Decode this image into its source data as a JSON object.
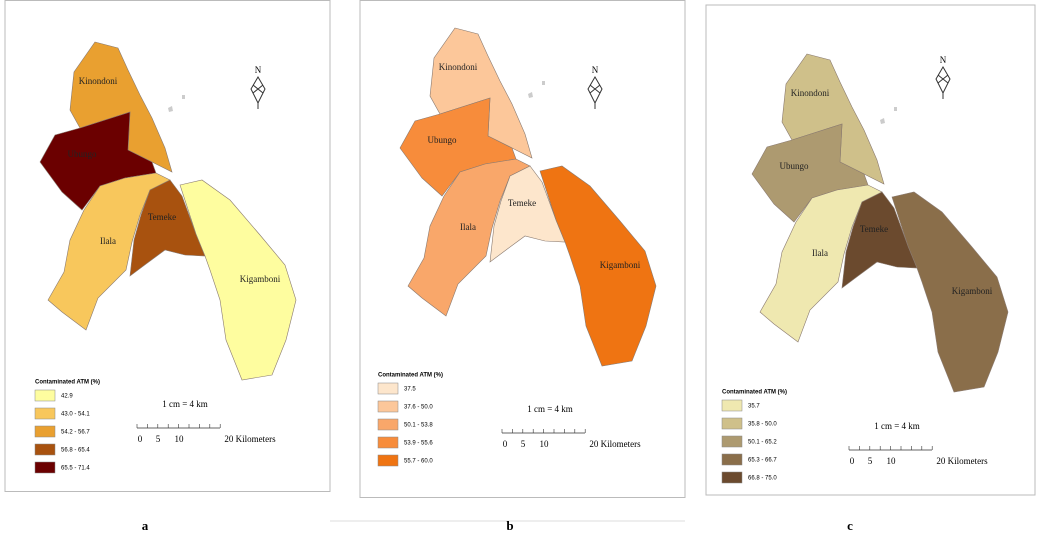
{
  "panels": [
    {
      "caption": "a",
      "legend_title": "Contaminated ATM (%)",
      "legend": [
        {
          "label": "42.9",
          "color": "#fefd9f"
        },
        {
          "label": "43.0 - 54.1",
          "color": "#f8c75c"
        },
        {
          "label": "54.2 - 56.7",
          "color": "#e9a030"
        },
        {
          "label": "56.8 - 65.4",
          "color": "#a8520f"
        },
        {
          "label": "65.5 - 71.4",
          "color": "#6b0000"
        }
      ],
      "districts": [
        {
          "name": "Kinondoni",
          "color": "#e9a030"
        },
        {
          "name": "Ubungo",
          "color": "#6b0000"
        },
        {
          "name": "Ilala",
          "color": "#f8c75c"
        },
        {
          "name": "Temeke",
          "color": "#a8520f"
        },
        {
          "name": "Kigamboni",
          "color": "#fefd9f"
        }
      ],
      "scale": "1 cm = 4 km",
      "scale_ticks": [
        "0",
        "5",
        "10",
        "20 Kilometers"
      ],
      "north": "N"
    },
    {
      "caption": "b",
      "legend_title": "Contaminated ATM (%)",
      "legend": [
        {
          "label": "37.5",
          "color": "#fde6cc"
        },
        {
          "label": "37.6 - 50.0",
          "color": "#fcc79a"
        },
        {
          "label": "50.1 - 53.8",
          "color": "#f9a76a"
        },
        {
          "label": "53.9 - 55.6",
          "color": "#f78c3b"
        },
        {
          "label": "55.7 - 60.0",
          "color": "#ef7412"
        }
      ],
      "districts": [
        {
          "name": "Kinondoni",
          "color": "#fcc79a"
        },
        {
          "name": "Ubungo",
          "color": "#f78c3b"
        },
        {
          "name": "Ilala",
          "color": "#f9a76a"
        },
        {
          "name": "Temeke",
          "color": "#fde6cc"
        },
        {
          "name": "Kigamboni",
          "color": "#ef7412"
        }
      ],
      "scale": "1 cm = 4 km",
      "scale_ticks": [
        "0",
        "5",
        "10",
        "20 Kilometers"
      ],
      "north": "N"
    },
    {
      "caption": "c",
      "legend_title": "Contaminated ATM (%)",
      "legend": [
        {
          "label": "35.7",
          "color": "#efe8b0"
        },
        {
          "label": "35.8 - 50.0",
          "color": "#cfc08a"
        },
        {
          "label": "50.1 - 65.2",
          "color": "#ad9a70"
        },
        {
          "label": "65.3 - 66.7",
          "color": "#8a6e4a"
        },
        {
          "label": "66.8 - 75.0",
          "color": "#6b4a2e"
        }
      ],
      "districts": [
        {
          "name": "Kinondoni",
          "color": "#cfc08a"
        },
        {
          "name": "Ubungo",
          "color": "#ad9a70"
        },
        {
          "name": "Ilala",
          "color": "#efe8b0"
        },
        {
          "name": "Temeke",
          "color": "#6b4a2e"
        },
        {
          "name": "Kigamboni",
          "color": "#8a6e4a"
        }
      ],
      "scale": "1 cm = 4 km",
      "scale_ticks": [
        "0",
        "5",
        "10",
        "20 Kilometers"
      ],
      "north": "N"
    }
  ]
}
